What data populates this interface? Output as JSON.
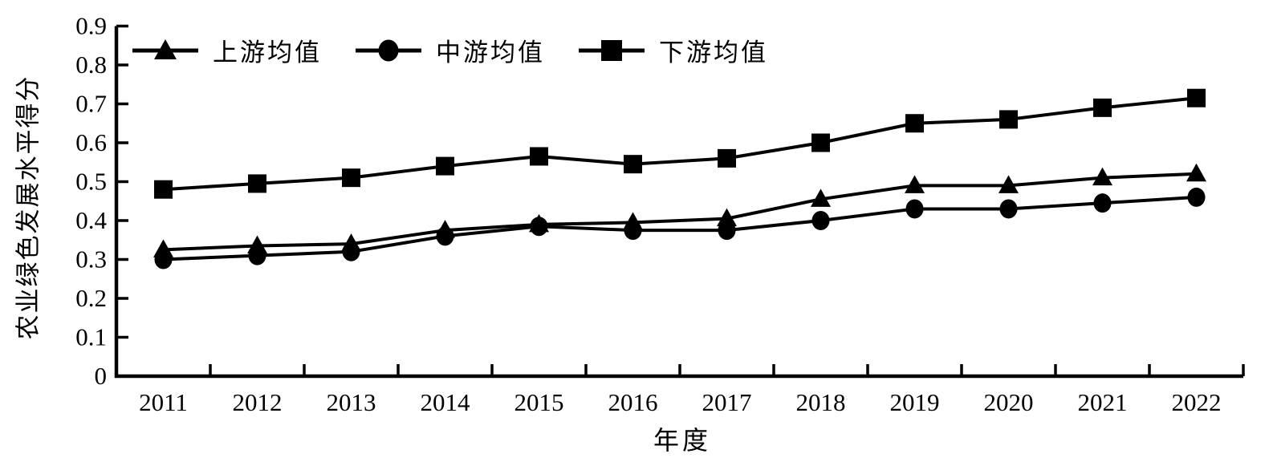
{
  "chart_data": {
    "type": "line",
    "title": "",
    "xlabel": "年度",
    "ylabel": "农业绿色发展水平得分",
    "categories": [
      "2011",
      "2012",
      "2013",
      "2014",
      "2015",
      "2016",
      "2017",
      "2018",
      "2019",
      "2020",
      "2021",
      "2022"
    ],
    "ylim": [
      0,
      0.9
    ],
    "yticks": [
      0,
      0.1,
      0.2,
      0.3,
      0.4,
      0.5,
      0.6,
      0.7,
      0.8,
      0.9
    ],
    "ytick_labels": [
      "0",
      "0.1",
      "0.2",
      "0.3",
      "0.4",
      "0.5",
      "0.6",
      "0.7",
      "0.8",
      "0.9"
    ],
    "grid": false,
    "legend_position": "top-left-horizontal",
    "line_color": "#000000",
    "background_color": "#ffffff",
    "series": [
      {
        "name": "上游均值",
        "marker": "triangle",
        "values": [
          0.325,
          0.335,
          0.34,
          0.375,
          0.39,
          0.395,
          0.405,
          0.455,
          0.49,
          0.49,
          0.51,
          0.52
        ]
      },
      {
        "name": "中游均值",
        "marker": "circle",
        "values": [
          0.3,
          0.31,
          0.32,
          0.36,
          0.385,
          0.375,
          0.375,
          0.4,
          0.43,
          0.43,
          0.445,
          0.46
        ]
      },
      {
        "name": "下游均值",
        "marker": "square",
        "values": [
          0.48,
          0.495,
          0.51,
          0.54,
          0.565,
          0.545,
          0.56,
          0.6,
          0.65,
          0.66,
          0.69,
          0.715
        ]
      }
    ]
  }
}
